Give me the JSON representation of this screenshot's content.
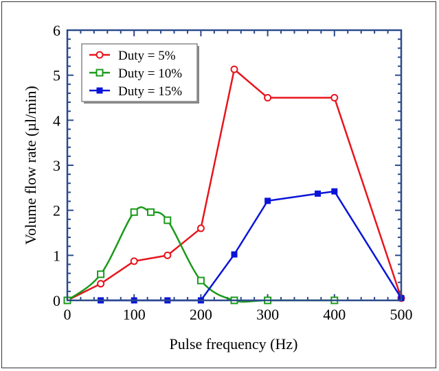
{
  "chart_data": {
    "type": "line",
    "title": "",
    "xlabel": "Pulse frequency (Hz)",
    "ylabel": "Volume flow rate (µl/min)",
    "xlim": [
      0,
      500
    ],
    "ylim": [
      0,
      6
    ],
    "xticks": [
      0,
      100,
      200,
      300,
      400,
      500
    ],
    "yticks": [
      0,
      1,
      2,
      3,
      4,
      5,
      6
    ],
    "grid": false,
    "legend_position": "top-left",
    "axis_color": "#2b4a8c",
    "series": [
      {
        "name": "Duty = 5%",
        "color": "#e8141c",
        "marker": "open-circle",
        "smooth": false,
        "x": [
          0,
          50,
          100,
          150,
          200,
          250,
          300,
          400,
          500
        ],
        "y": [
          0,
          0.37,
          0.87,
          1.0,
          1.6,
          5.13,
          4.5,
          4.5,
          0.05
        ]
      },
      {
        "name": "Duty = 10%",
        "color": "#1a9a1a",
        "marker": "open-square",
        "smooth": true,
        "x": [
          0,
          50,
          100,
          125,
          150,
          200,
          250,
          300,
          400
        ],
        "y": [
          0,
          0.58,
          1.96,
          1.96,
          1.78,
          0.44,
          0,
          0,
          0
        ]
      },
      {
        "name": "Duty = 15%",
        "color": "#0a14d8",
        "marker": "filled-square",
        "smooth": false,
        "x": [
          50,
          100,
          150,
          200,
          250,
          300,
          375,
          400,
          500
        ],
        "y": [
          0,
          0,
          0,
          0,
          1.02,
          2.21,
          2.37,
          2.42,
          0.05
        ]
      }
    ]
  }
}
